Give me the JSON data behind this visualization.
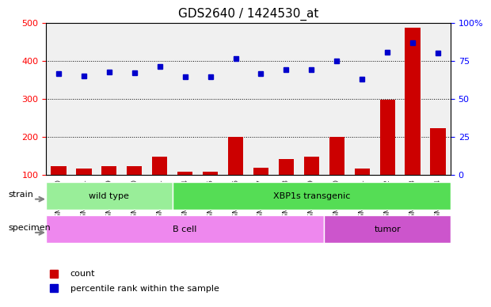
{
  "title": "GDS2640 / 1424530_at",
  "samples": [
    "GSM160730",
    "GSM160731",
    "GSM160739",
    "GSM160860",
    "GSM160861",
    "GSM160864",
    "GSM160865",
    "GSM160866",
    "GSM160867",
    "GSM160868",
    "GSM160869",
    "GSM160880",
    "GSM160881",
    "GSM160882",
    "GSM160883",
    "GSM160884"
  ],
  "counts": [
    122,
    115,
    123,
    123,
    148,
    108,
    108,
    200,
    118,
    140,
    148,
    200,
    115,
    298,
    487,
    222
  ],
  "percentiles": [
    355,
    347,
    360,
    358,
    378,
    342,
    344,
    408,
    355,
    368,
    368,
    398,
    335,
    428,
    463,
    425
  ],
  "ylim_left": [
    100,
    500
  ],
  "ylim_right": [
    0,
    100
  ],
  "left_ticks": [
    100,
    200,
    300,
    400,
    500
  ],
  "right_ticks": [
    0,
    25,
    50,
    75,
    100
  ],
  "right_tick_labels": [
    "0",
    "25",
    "50",
    "75",
    "100%"
  ],
  "bar_color": "#cc0000",
  "dot_color": "#0000cc",
  "grid_color": "#000000",
  "strain_groups": [
    {
      "label": "wild type",
      "start": 0,
      "end": 5,
      "color": "#99ee99"
    },
    {
      "label": "XBP1s transgenic",
      "start": 5,
      "end": 16,
      "color": "#55dd55"
    }
  ],
  "specimen_groups": [
    {
      "label": "B cell",
      "start": 0,
      "end": 11,
      "color": "#ee88ee"
    },
    {
      "label": "tumor",
      "start": 11,
      "end": 16,
      "color": "#cc55cc"
    }
  ],
  "background_color": "#ffffff",
  "plot_bg_color": "#ffffff",
  "legend_items": [
    {
      "label": "count",
      "color": "#cc0000",
      "marker": "s"
    },
    {
      "label": "percentile rank within the sample",
      "color": "#0000cc",
      "marker": "s"
    }
  ]
}
